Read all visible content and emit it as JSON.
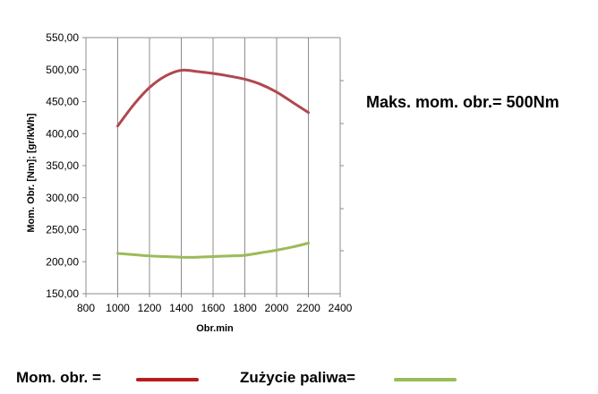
{
  "chart_data": {
    "type": "line",
    "title": "",
    "xlabel": "Obr.min",
    "ylabel": "Mom. Obr. [Nm]; [gr/kWh]",
    "xlim": [
      800,
      2400
    ],
    "ylim": [
      150,
      550
    ],
    "x_ticks": [
      800,
      1000,
      1200,
      1400,
      1600,
      1800,
      2000,
      2200,
      2400
    ],
    "y_ticks": [
      "150,00",
      "200,00",
      "250,00",
      "300,00",
      "350,00",
      "400,00",
      "450,00",
      "500,00",
      "550,00"
    ],
    "grid": "vertical",
    "series": [
      {
        "name": "Mom. obr. =",
        "color": "#b0484f",
        "x": [
          1000,
          1100,
          1200,
          1300,
          1400,
          1500,
          1600,
          1700,
          1800,
          1900,
          2000,
          2100,
          2200
        ],
        "values": [
          412,
          445,
          472,
          490,
          499,
          497,
          494,
          490,
          485,
          477,
          465,
          449,
          433
        ]
      },
      {
        "name": "Zużycie paliwa=",
        "color": "#9bbb59",
        "x": [
          1000,
          1100,
          1200,
          1300,
          1400,
          1500,
          1600,
          1700,
          1800,
          1900,
          2000,
          2100,
          2200
        ],
        "values": [
          213,
          211,
          209,
          208,
          207,
          207,
          208,
          209,
          210,
          214,
          218,
          223,
          229
        ]
      }
    ],
    "annotation": "Maks. mom. obr.= 500Nm",
    "legend": {
      "placement": "bottom",
      "items": [
        {
          "label": "Mom. obr. =",
          "color": "#b71c1c"
        },
        {
          "label": "Zużycie paliwa=",
          "color": "#9bbb59"
        }
      ]
    }
  }
}
